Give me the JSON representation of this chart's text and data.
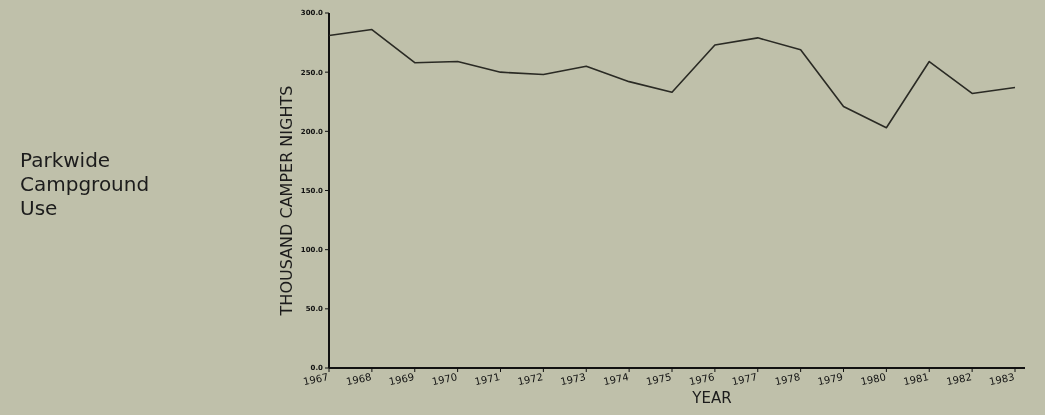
{
  "chart_data": {
    "type": "line",
    "title": "Parkwide Campground Use",
    "xlabel": "YEAR",
    "ylabel": "THOUSAND CAMPER NIGHTS",
    "categories": [
      "1967",
      "1968",
      "1969",
      "1970",
      "1971",
      "1972",
      "1973",
      "1974",
      "1975",
      "1976",
      "1977",
      "1978",
      "1979",
      "1980",
      "1981",
      "1982",
      "1983"
    ],
    "series": [
      {
        "color": "#2a2a24",
        "values": [
          281,
          286,
          258,
          259,
          250,
          248,
          255,
          242,
          233,
          273,
          279,
          269,
          221,
          203,
          259,
          232,
          237
        ]
      }
    ],
    "ylim": [
      0,
      300
    ],
    "yticks": [
      {
        "value": 0,
        "label": "0.0"
      },
      {
        "value": 50,
        "label": "50.0"
      },
      {
        "value": 100,
        "label": "100.0"
      },
      {
        "value": 150,
        "label": "150.0"
      },
      {
        "value": 200,
        "label": "200.0"
      },
      {
        "value": 250,
        "label": "250.0"
      },
      {
        "value": 300,
        "label": "300.0"
      }
    ],
    "grid": false,
    "marker": "none",
    "line_style": "solid"
  }
}
